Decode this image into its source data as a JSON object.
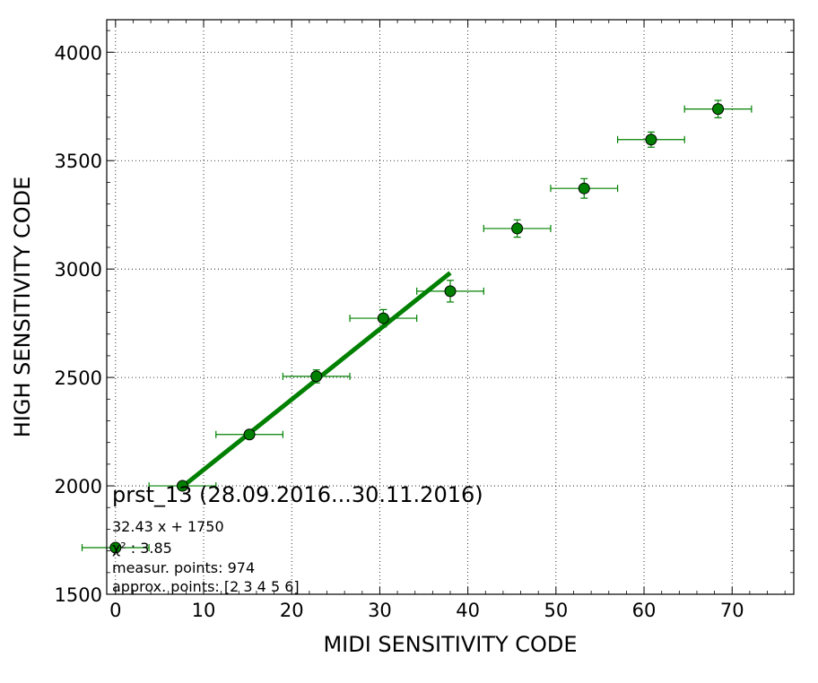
{
  "chart_data": {
    "type": "scatter",
    "title": "prst_13 (28.09.2016...30.11.2016)",
    "xlabel": "MIDI SENSITIVITY CODE",
    "ylabel": "HIGH SENSITIVITY CODE",
    "xlim": [
      -1,
      77
    ],
    "ylim": [
      1500,
      4150
    ],
    "xticks": [
      0,
      10,
      20,
      30,
      40,
      50,
      60,
      70
    ],
    "yticks": [
      1500,
      2000,
      2500,
      3000,
      3500,
      4000
    ],
    "grid": true,
    "colors": {
      "points": "#008000",
      "fit": "#008000",
      "errorbar": "#008000"
    },
    "series": [
      {
        "kind": "errorbar-points",
        "points": [
          {
            "x": 0,
            "y": 1715,
            "xerr": 3.8,
            "yerr": 0
          },
          {
            "x": 7.6,
            "y": 2000,
            "xerr": 3.8,
            "yerr": 10
          },
          {
            "x": 15.2,
            "y": 2237,
            "xerr": 3.8,
            "yerr": 15
          },
          {
            "x": 22.8,
            "y": 2505,
            "xerr": 3.8,
            "yerr": 30
          },
          {
            "x": 30.4,
            "y": 2773,
            "xerr": 3.8,
            "yerr": 40
          },
          {
            "x": 38.0,
            "y": 2898,
            "xerr": 3.8,
            "yerr": 50
          },
          {
            "x": 45.6,
            "y": 3187,
            "xerr": 3.8,
            "yerr": 40
          },
          {
            "x": 53.2,
            "y": 3372,
            "xerr": 3.8,
            "yerr": 45
          },
          {
            "x": 60.8,
            "y": 3597,
            "xerr": 3.8,
            "yerr": 35
          },
          {
            "x": 68.4,
            "y": 3738,
            "xerr": 3.8,
            "yerr": 40
          }
        ]
      },
      {
        "kind": "fit-line",
        "slope": 32.43,
        "intercept": 1750,
        "x_range": [
          7.6,
          38.0
        ]
      }
    ],
    "annotations": {
      "fit": "32.43 x + 1750",
      "chi2": "χ² : 3.85",
      "measur": "measur. points: 974",
      "approx": "approx. points: [2 3 4 5 6]"
    }
  }
}
